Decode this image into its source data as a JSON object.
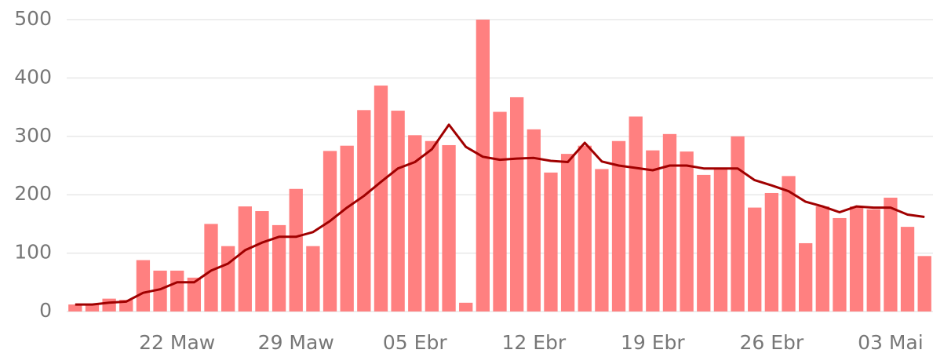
{
  "chart_data": {
    "type": "bar",
    "categories": [
      null,
      null,
      null,
      null,
      null,
      null,
      "22 Maw",
      null,
      null,
      null,
      null,
      null,
      null,
      "29 Maw",
      null,
      null,
      null,
      null,
      null,
      null,
      "05 Ebr",
      null,
      null,
      null,
      null,
      null,
      null,
      "12 Ebr",
      null,
      null,
      null,
      null,
      null,
      null,
      "19 Ebr",
      null,
      null,
      null,
      null,
      null,
      null,
      "26 Ebr",
      null,
      null,
      null,
      null,
      null,
      null,
      "03 Mai",
      null,
      null
    ],
    "series": [
      {
        "type": "bar",
        "color": "#ff8080",
        "values": [
          12,
          12,
          22,
          20,
          88,
          70,
          70,
          58,
          150,
          112,
          180,
          172,
          148,
          210,
          112,
          275,
          284,
          345,
          387,
          344,
          302,
          292,
          285,
          15,
          500,
          342,
          367,
          312,
          238,
          270,
          284,
          244,
          292,
          334,
          276,
          304,
          274,
          234,
          245,
          300,
          178,
          203,
          232,
          117,
          180,
          160,
          180,
          175,
          195,
          145,
          95
        ]
      },
      {
        "type": "line",
        "color": "#a00000",
        "values": [
          12,
          12,
          15,
          17,
          32,
          38,
          50,
          50,
          70,
          82,
          105,
          118,
          128,
          128,
          136,
          155,
          178,
          198,
          222,
          245,
          256,
          278,
          320,
          282,
          265,
          260,
          262,
          263,
          258,
          256,
          289,
          257,
          250,
          246,
          242,
          250,
          250,
          245,
          245,
          245,
          225,
          216,
          206,
          188,
          180,
          170,
          180,
          178,
          178,
          166,
          162
        ]
      }
    ],
    "ylim": [
      0,
      500
    ],
    "yticks": [
      0,
      100,
      200,
      300,
      400,
      500
    ],
    "grid": true
  }
}
